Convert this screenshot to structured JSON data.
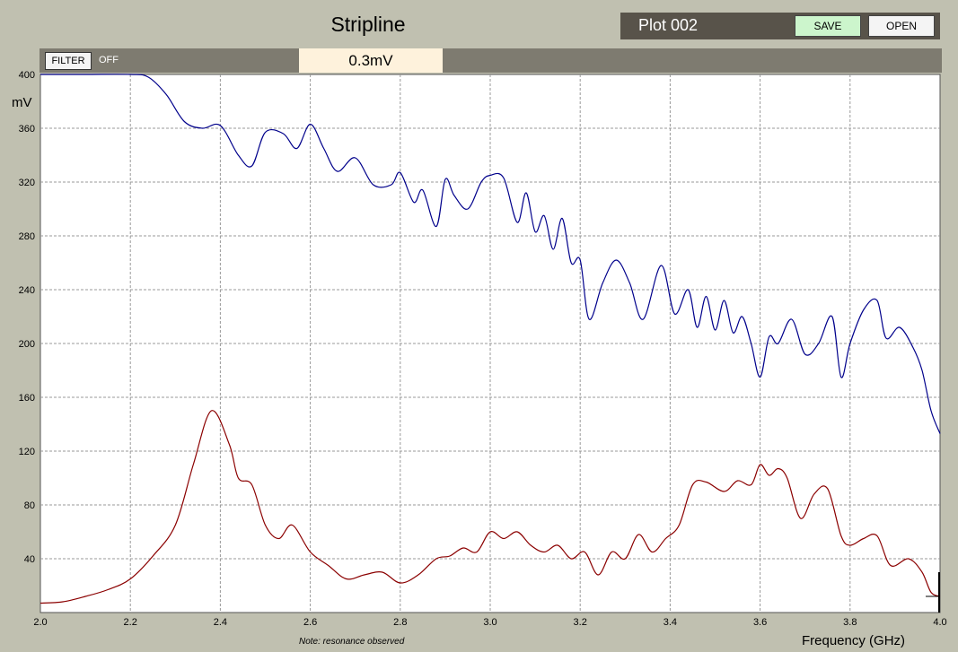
{
  "header": {
    "title": "Stripline",
    "plot_name": "Plot 002",
    "save_label": "SAVE",
    "open_label": "OPEN"
  },
  "toolbar": {
    "filter_label": "FILTER",
    "filter_state": "OFF",
    "readout": "0.3mV"
  },
  "note": "Note: resonance observed",
  "colors": {
    "background": "#c0c0b0",
    "plot_area": "#ffffff",
    "grid": "#999999",
    "series_upper": "#00008b",
    "series_lower": "#8b0000"
  },
  "chart_data": {
    "type": "line",
    "title": "Stripline",
    "xlabel": "Frequency (GHz)",
    "ylabel": "mV",
    "xlim": [
      2.0,
      4.0
    ],
    "ylim": [
      0,
      400
    ],
    "x_ticks": [
      "2.0",
      "2.2",
      "2.4",
      "2.6",
      "2.8",
      "3.0",
      "3.2",
      "3.4",
      "3.6",
      "3.8",
      "4.0"
    ],
    "y_ticks": [
      "40",
      "80",
      "120",
      "160",
      "200",
      "240",
      "280",
      "320",
      "360",
      "400"
    ],
    "grid": true,
    "legend": "none",
    "series": [
      {
        "color": "#00008b",
        "x": [
          2.0,
          2.1,
          2.2,
          2.24,
          2.28,
          2.32,
          2.36,
          2.4,
          2.44,
          2.47,
          2.5,
          2.54,
          2.57,
          2.6,
          2.63,
          2.66,
          2.7,
          2.74,
          2.78,
          2.8,
          2.83,
          2.85,
          2.88,
          2.9,
          2.92,
          2.95,
          2.98,
          3.0,
          3.03,
          3.06,
          3.08,
          3.1,
          3.12,
          3.14,
          3.16,
          3.18,
          3.2,
          3.22,
          3.25,
          3.28,
          3.31,
          3.34,
          3.38,
          3.41,
          3.44,
          3.46,
          3.48,
          3.5,
          3.52,
          3.54,
          3.56,
          3.58,
          3.6,
          3.62,
          3.64,
          3.67,
          3.7,
          3.73,
          3.76,
          3.78,
          3.8,
          3.83,
          3.86,
          3.88,
          3.91,
          3.94,
          3.96,
          3.98,
          4.0
        ],
        "y": [
          400,
          400,
          400,
          398,
          385,
          365,
          360,
          362,
          340,
          332,
          357,
          356,
          345,
          363,
          345,
          328,
          338,
          318,
          318,
          327,
          305,
          314,
          287,
          322,
          310,
          300,
          320,
          325,
          323,
          290,
          312,
          283,
          295,
          270,
          293,
          260,
          262,
          218,
          245,
          262,
          245,
          218,
          258,
          222,
          240,
          212,
          235,
          210,
          232,
          208,
          220,
          200,
          175,
          205,
          200,
          218,
          192,
          200,
          220,
          175,
          200,
          225,
          232,
          204,
          212,
          197,
          180,
          150,
          133
        ]
      },
      {
        "color": "#8b0000",
        "x": [
          2.0,
          2.05,
          2.1,
          2.15,
          2.2,
          2.25,
          2.3,
          2.34,
          2.38,
          2.42,
          2.44,
          2.47,
          2.5,
          2.53,
          2.56,
          2.6,
          2.64,
          2.68,
          2.72,
          2.76,
          2.8,
          2.84,
          2.88,
          2.91,
          2.94,
          2.97,
          3.0,
          3.03,
          3.06,
          3.09,
          3.12,
          3.15,
          3.18,
          3.21,
          3.24,
          3.27,
          3.3,
          3.33,
          3.36,
          3.39,
          3.42,
          3.45,
          3.48,
          3.52,
          3.55,
          3.58,
          3.6,
          3.62,
          3.64,
          3.66,
          3.69,
          3.72,
          3.75,
          3.78,
          3.8,
          3.83,
          3.86,
          3.89,
          3.93,
          3.96,
          3.98,
          4.0
        ],
        "y": [
          7,
          8,
          12,
          17,
          25,
          42,
          65,
          110,
          150,
          125,
          100,
          95,
          65,
          55,
          65,
          45,
          35,
          25,
          28,
          30,
          22,
          28,
          40,
          42,
          48,
          45,
          60,
          55,
          60,
          50,
          45,
          50,
          40,
          45,
          28,
          45,
          40,
          58,
          45,
          55,
          65,
          95,
          97,
          90,
          98,
          95,
          110,
          102,
          107,
          100,
          70,
          88,
          92,
          57,
          50,
          55,
          57,
          35,
          40,
          30,
          15,
          12
        ]
      }
    ]
  }
}
